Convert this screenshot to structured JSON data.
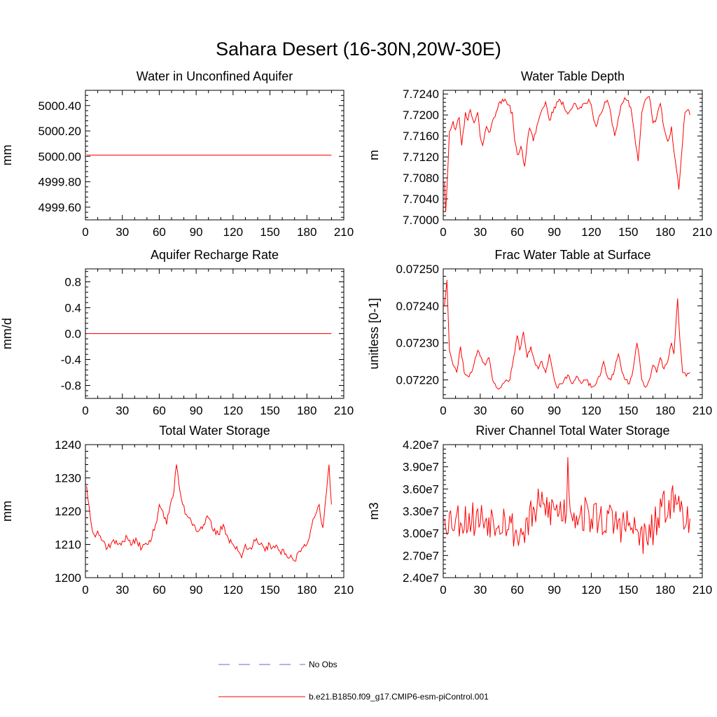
{
  "figure": {
    "title": "Sahara Desert (16-30N,20W-30E)"
  },
  "legend": {
    "entries": [
      {
        "label": "No Obs",
        "color": "#6a6ad0",
        "style": "dashed"
      },
      {
        "label": "b.e21.B1850.f09_g17.CMIP6-esm-piControl.001",
        "color": "#ff0000",
        "style": "solid"
      }
    ]
  },
  "colors": {
    "series": "#ff0000",
    "obs": "#6a6ad0",
    "axis": "#000000"
  },
  "chart_data": [
    {
      "type": "line",
      "title": "Water in Unconfined Aquifer",
      "xlabel": "",
      "ylabel": "mm",
      "xlim": [
        0,
        210
      ],
      "ylim": [
        4999.5,
        5000.52
      ],
      "xticks": [
        0,
        30,
        60,
        90,
        120,
        150,
        180,
        210
      ],
      "yticks": [
        4999.6,
        4999.8,
        5000.0,
        5000.2,
        5000.4
      ],
      "ytick_labels": [
        "4999.60",
        "4999.80",
        "5000.00",
        "5000.20",
        "5000.40"
      ],
      "series": [
        {
          "name": "b.e21.B1850.f09_g17.CMIP6-esm-piControl.001",
          "kind": "constant",
          "y": 5000.01,
          "x_start": 1,
          "x_end": 200
        }
      ]
    },
    {
      "type": "line",
      "title": "Water Table Depth",
      "xlabel": "",
      "ylabel": "m",
      "xlim": [
        0,
        210
      ],
      "ylim": [
        7.7,
        7.7247
      ],
      "xticks": [
        0,
        30,
        60,
        90,
        120,
        150,
        180,
        210
      ],
      "yticks": [
        7.7,
        7.704,
        7.708,
        7.712,
        7.716,
        7.72,
        7.724
      ],
      "ytick_labels": [
        "7.7000",
        "7.7040",
        "7.7080",
        "7.7120",
        "7.7160",
        "7.7200",
        "7.7240"
      ],
      "series": [
        {
          "name": "b.e21.B1850.f09_g17.CMIP6-esm-piControl.001",
          "kind": "noisy",
          "x_start": 1,
          "x_end": 200,
          "seed": 11,
          "noise": 0.0006,
          "anchors": [
            [
              1,
              7.7071
            ],
            [
              2,
              7.7015
            ],
            [
              3,
              7.706
            ],
            [
              5,
              7.7168
            ],
            [
              8,
              7.7188
            ],
            [
              10,
              7.7172
            ],
            [
              13,
              7.7195
            ],
            [
              15,
              7.7142
            ],
            [
              18,
              7.7205
            ],
            [
              20,
              7.719
            ],
            [
              22,
              7.721
            ],
            [
              25,
              7.7185
            ],
            [
              28,
              7.7205
            ],
            [
              30,
              7.7158
            ],
            [
              32,
              7.7142
            ],
            [
              35,
              7.7178
            ],
            [
              38,
              7.7168
            ],
            [
              41,
              7.7195
            ],
            [
              45,
              7.7222
            ],
            [
              48,
              7.723
            ],
            [
              52,
              7.722
            ],
            [
              56,
              7.7205
            ],
            [
              58,
              7.715
            ],
            [
              60,
              7.7125
            ],
            [
              63,
              7.714
            ],
            [
              66,
              7.7102
            ],
            [
              68,
              7.7145
            ],
            [
              70,
              7.7175
            ],
            [
              73,
              7.715
            ],
            [
              76,
              7.718
            ],
            [
              80,
              7.721
            ],
            [
              83,
              7.7225
            ],
            [
              86,
              7.719
            ],
            [
              90,
              7.7215
            ],
            [
              94,
              7.723
            ],
            [
              98,
              7.7215
            ],
            [
              102,
              7.7205
            ],
            [
              106,
              7.7222
            ],
            [
              110,
              7.7212
            ],
            [
              114,
              7.7222
            ],
            [
              118,
              7.723
            ],
            [
              121,
              7.7205
            ],
            [
              124,
              7.7178
            ],
            [
              127,
              7.72
            ],
            [
              130,
              7.7215
            ],
            [
              133,
              7.7228
            ],
            [
              136,
              7.72
            ],
            [
              139,
              7.716
            ],
            [
              142,
              7.7195
            ],
            [
              145,
              7.7222
            ],
            [
              148,
              7.723
            ],
            [
              152,
              7.7215
            ],
            [
              155,
              7.7165
            ],
            [
              158,
              7.7112
            ],
            [
              161,
              7.7205
            ],
            [
              164,
              7.723
            ],
            [
              167,
              7.7235
            ],
            [
              170,
              7.7185
            ],
            [
              173,
              7.7195
            ],
            [
              176,
              7.7222
            ],
            [
              179,
              7.7175
            ],
            [
              182,
              7.715
            ],
            [
              185,
              7.7178
            ],
            [
              188,
              7.7115
            ],
            [
              191,
              7.7058
            ],
            [
              193,
              7.712
            ],
            [
              196,
              7.7205
            ],
            [
              198,
              7.721
            ],
            [
              200,
              7.72
            ]
          ]
        }
      ]
    },
    {
      "type": "line",
      "title": "Aquifer Recharge Rate",
      "xlabel": "",
      "ylabel": "mm/d",
      "xlim": [
        0,
        210
      ],
      "ylim": [
        -1.0,
        1.0
      ],
      "xticks": [
        0,
        30,
        60,
        90,
        120,
        150,
        180,
        210
      ],
      "yticks": [
        -0.8,
        -0.4,
        0.0,
        0.4,
        0.8
      ],
      "ytick_labels": [
        "-0.8",
        "-0.4",
        "0.0",
        "0.4",
        "0.8"
      ],
      "series": [
        {
          "name": "b.e21.B1850.f09_g17.CMIP6-esm-piControl.001",
          "kind": "constant",
          "y": 0.0,
          "x_start": 1,
          "x_end": 200
        }
      ]
    },
    {
      "type": "line",
      "title": "Frac Water Table at Surface",
      "xlabel": "",
      "ylabel": "unitless [0-1]",
      "xlim": [
        0,
        210
      ],
      "ylim": [
        0.07215,
        0.0725
      ],
      "xticks": [
        0,
        30,
        60,
        90,
        120,
        150,
        180,
        210
      ],
      "yticks": [
        0.0722,
        0.0723,
        0.0724,
        0.0725
      ],
      "ytick_labels": [
        "0.07220",
        "0.07230",
        "0.07240",
        "0.07250"
      ],
      "series": [
        {
          "name": "b.e21.B1850.f09_g17.CMIP6-esm-piControl.001",
          "kind": "noisy",
          "x_start": 1,
          "x_end": 200,
          "seed": 23,
          "noise": 6e-06,
          "anchors": [
            [
              1,
              0.0724
            ],
            [
              3,
              0.07247
            ],
            [
              5,
              0.07228
            ],
            [
              8,
              0.07224
            ],
            [
              11,
              0.07222
            ],
            [
              14,
              0.07229
            ],
            [
              17,
              0.07222
            ],
            [
              20,
              0.07221
            ],
            [
              23,
              0.07222
            ],
            [
              26,
              0.07226
            ],
            [
              28,
              0.07228
            ],
            [
              31,
              0.07226
            ],
            [
              34,
              0.07224
            ],
            [
              37,
              0.07226
            ],
            [
              40,
              0.0722
            ],
            [
              43,
              0.07218
            ],
            [
              47,
              0.07218
            ],
            [
              51,
              0.0722
            ],
            [
              54,
              0.0722
            ],
            [
              57,
              0.07226
            ],
            [
              60,
              0.07232
            ],
            [
              62,
              0.07228
            ],
            [
              65,
              0.07233
            ],
            [
              68,
              0.07226
            ],
            [
              71,
              0.07229
            ],
            [
              74,
              0.07225
            ],
            [
              77,
              0.07223
            ],
            [
              80,
              0.07225
            ],
            [
              83,
              0.07222
            ],
            [
              86,
              0.07227
            ],
            [
              89,
              0.07222
            ],
            [
              92,
              0.07218
            ],
            [
              95,
              0.07219
            ],
            [
              98,
              0.0722
            ],
            [
              102,
              0.07221
            ],
            [
              105,
              0.07219
            ],
            [
              108,
              0.07221
            ],
            [
              112,
              0.07219
            ],
            [
              116,
              0.0722
            ],
            [
              120,
              0.07218
            ],
            [
              124,
              0.07219
            ],
            [
              127,
              0.07221
            ],
            [
              130,
              0.07225
            ],
            [
              133,
              0.07221
            ],
            [
              136,
              0.0722
            ],
            [
              139,
              0.07223
            ],
            [
              142,
              0.07227
            ],
            [
              145,
              0.07222
            ],
            [
              148,
              0.0722
            ],
            [
              151,
              0.07219
            ],
            [
              154,
              0.07223
            ],
            [
              157,
              0.0723
            ],
            [
              159,
              0.07226
            ],
            [
              161,
              0.0722
            ],
            [
              164,
              0.07218
            ],
            [
              167,
              0.0722
            ],
            [
              170,
              0.07224
            ],
            [
              173,
              0.07222
            ],
            [
              176,
              0.07226
            ],
            [
              179,
              0.07223
            ],
            [
              182,
              0.07225
            ],
            [
              185,
              0.0723
            ],
            [
              187,
              0.07227
            ],
            [
              190,
              0.07242
            ],
            [
              192,
              0.0723
            ],
            [
              194,
              0.07222
            ],
            [
              197,
              0.07221
            ],
            [
              200,
              0.07222
            ]
          ]
        }
      ]
    },
    {
      "type": "line",
      "title": "Total Water Storage",
      "xlabel": "",
      "ylabel": "mm",
      "xlim": [
        0,
        210
      ],
      "ylim": [
        1200,
        1240
      ],
      "xticks": [
        0,
        30,
        60,
        90,
        120,
        150,
        180,
        210
      ],
      "yticks": [
        1200,
        1210,
        1220,
        1230,
        1240
      ],
      "ytick_labels": [
        "1200",
        "1210",
        "1220",
        "1230",
        "1240"
      ],
      "series": [
        {
          "name": "b.e21.B1850.f09_g17.CMIP6-esm-piControl.001",
          "kind": "noisy",
          "x_start": 1,
          "x_end": 200,
          "seed": 37,
          "noise": 1.2,
          "anchors": [
            [
              1,
              1227.5
            ],
            [
              4,
              1218
            ],
            [
              7,
              1213
            ],
            [
              10,
              1214
            ],
            [
              14,
              1211
            ],
            [
              18,
              1209
            ],
            [
              22,
              1211
            ],
            [
              26,
              1210
            ],
            [
              30,
              1211
            ],
            [
              34,
              1212
            ],
            [
              38,
              1210
            ],
            [
              42,
              1211
            ],
            [
              46,
              1209
            ],
            [
              50,
              1210
            ],
            [
              54,
              1212
            ],
            [
              57,
              1216
            ],
            [
              60,
              1222
            ],
            [
              63,
              1220
            ],
            [
              66,
              1216
            ],
            [
              69,
              1222
            ],
            [
              72,
              1226
            ],
            [
              74,
              1234
            ],
            [
              76,
              1228
            ],
            [
              79,
              1222
            ],
            [
              82,
              1219
            ],
            [
              85,
              1218
            ],
            [
              88,
              1216
            ],
            [
              92,
              1214
            ],
            [
              96,
              1216
            ],
            [
              100,
              1218
            ],
            [
              104,
              1214
            ],
            [
              108,
              1213
            ],
            [
              112,
              1216
            ],
            [
              116,
              1212
            ],
            [
              120,
              1210
            ],
            [
              124,
              1208
            ],
            [
              127,
              1206
            ],
            [
              130,
              1210
            ],
            [
              134,
              1209
            ],
            [
              138,
              1211
            ],
            [
              142,
              1210
            ],
            [
              146,
              1208
            ],
            [
              150,
              1210
            ],
            [
              154,
              1209
            ],
            [
              158,
              1208
            ],
            [
              162,
              1207
            ],
            [
              166,
              1206
            ],
            [
              170,
              1205
            ],
            [
              174,
              1208
            ],
            [
              178,
              1210
            ],
            [
              182,
              1212
            ],
            [
              186,
              1218
            ],
            [
              190,
              1222
            ],
            [
              193,
              1215
            ],
            [
              196,
              1226
            ],
            [
              198,
              1234
            ],
            [
              200,
              1222
            ]
          ]
        }
      ]
    },
    {
      "type": "line",
      "title": "River Channel Total Water Storage",
      "xlabel": "",
      "ylabel": "m3",
      "xlim": [
        0,
        210
      ],
      "ylim": [
        24000000,
        42000000
      ],
      "xticks": [
        0,
        30,
        60,
        90,
        120,
        150,
        180,
        210
      ],
      "yticks": [
        24000000,
        27000000,
        30000000,
        33000000,
        36000000,
        39000000,
        42000000
      ],
      "ytick_labels": [
        "2.40e7",
        "2.70e7",
        "3.00e7",
        "3.30e7",
        "3.60e7",
        "3.90e7",
        "4.20e7"
      ],
      "series": [
        {
          "name": "b.e21.B1850.f09_g17.CMIP6-esm-piControl.001",
          "kind": "noisy",
          "x_start": 1,
          "x_end": 200,
          "seed": 53,
          "noise": 2600000,
          "anchors": [
            [
              1,
              32000000
            ],
            [
              50,
              32000000
            ],
            [
              62,
              29500000
            ],
            [
              76,
              33500000
            ],
            [
              100,
              33000000
            ],
            [
              101,
              40300000
            ],
            [
              103,
              33000000
            ],
            [
              150,
              31000000
            ],
            [
              165,
              29000000
            ],
            [
              183,
              34500000
            ],
            [
              190,
              34000000
            ],
            [
              200,
              32000000
            ]
          ]
        }
      ]
    }
  ]
}
